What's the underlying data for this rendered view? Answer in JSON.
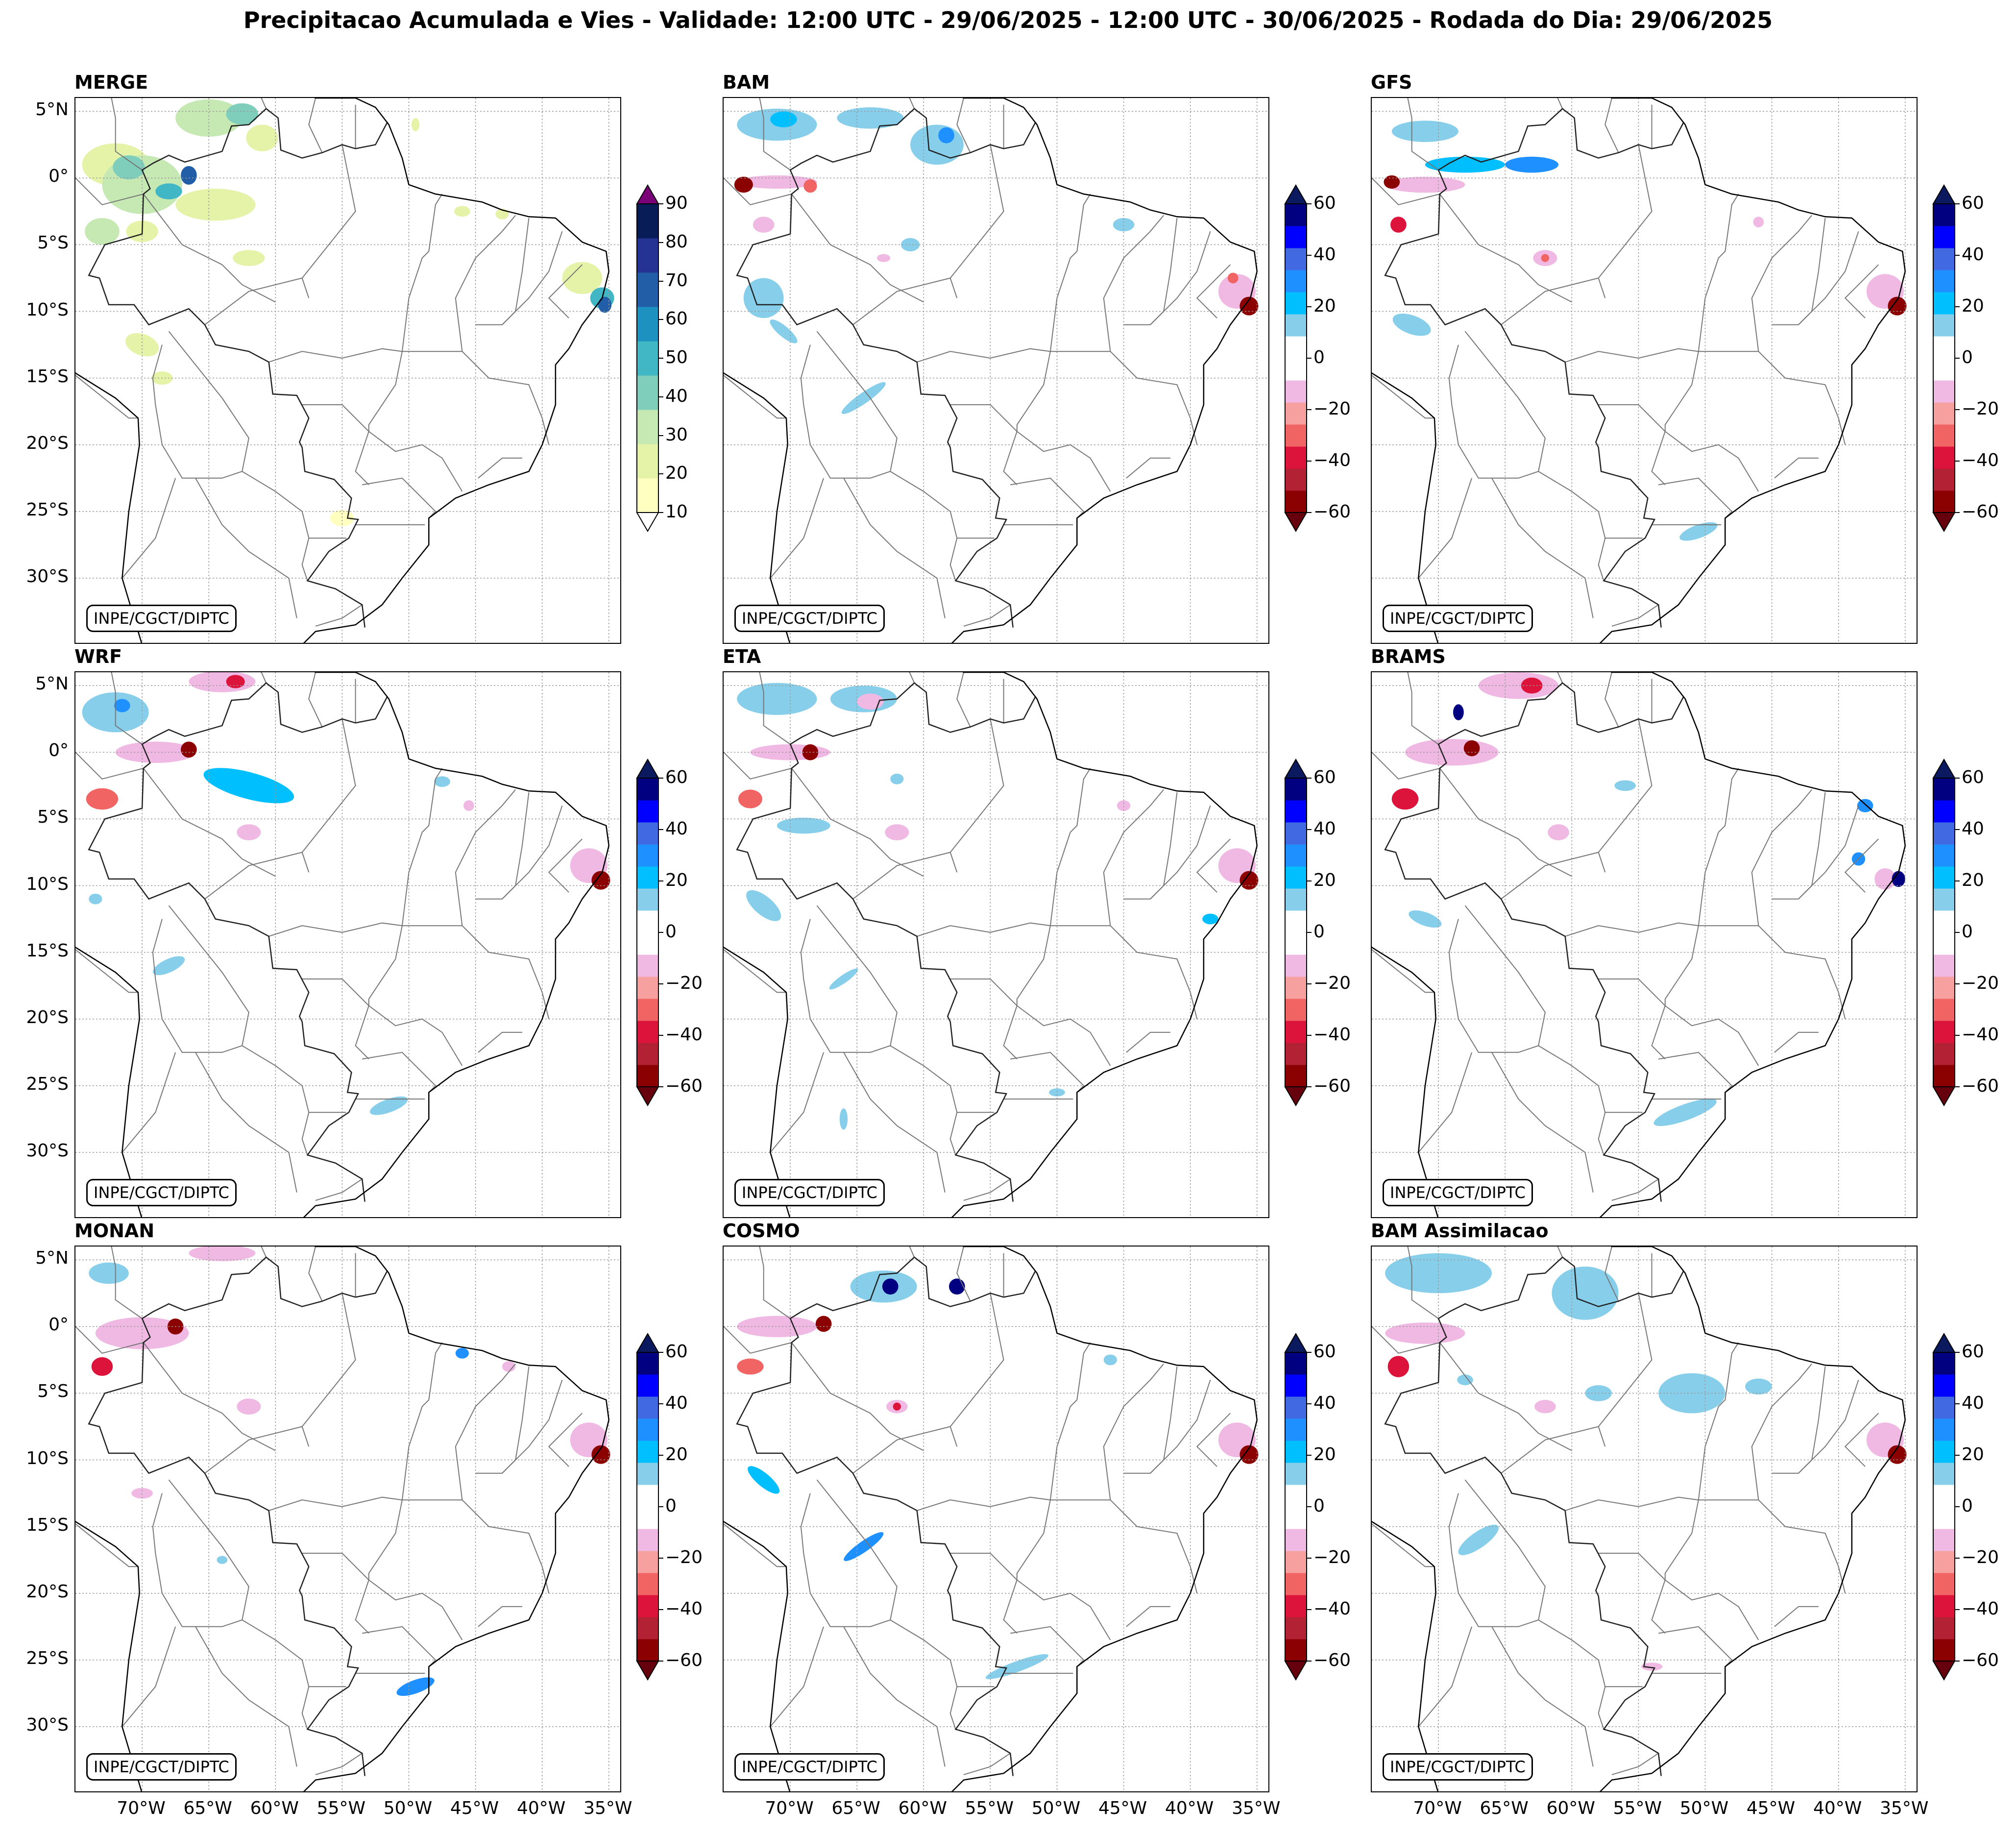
{
  "title": "Precipitacao Acumulada e Vies - Validade: 12:00 UTC - 29/06/2025 - 12:00 UTC - 30/06/2025 - Rodada do Dia: 29/06/2025",
  "credit": "INPE/CGCT/DIPTC",
  "lat_ticks": [
    "5°N",
    "0°",
    "5°S",
    "10°S",
    "15°S",
    "20°S",
    "25°S",
    "30°S"
  ],
  "lon_ticks": [
    "70°W",
    "65°W",
    "60°W",
    "55°W",
    "50°W",
    "45°W",
    "40°W",
    "35°W"
  ],
  "merge_colorbar": {
    "ticks": [
      "90",
      "80",
      "70",
      "60",
      "50",
      "40",
      "30",
      "20",
      "10"
    ],
    "colors": [
      "#ffffc0",
      "#e4f3a8",
      "#c6e9b4",
      "#7fcdbb",
      "#41b6c4",
      "#1d91c0",
      "#225ea8",
      "#253494",
      "#081d58"
    ],
    "under_color": "#ffffff",
    "over_color": "#7a0177"
  },
  "bias_colorbar": {
    "ticks": [
      "60",
      "40",
      "20",
      "0",
      "−20",
      "−40",
      "−60"
    ],
    "colors": [
      "#000080",
      "#0000ff",
      "#4169e1",
      "#1e90ff",
      "#00bfff",
      "#87ceeb",
      "#ffffff",
      "#ffffff",
      "#f0b9e3",
      "#f7a0a0",
      "#f06464",
      "#dc143c",
      "#b22234",
      "#8b0000"
    ],
    "under_color": "#67000d",
    "over_color": "#0b1a5e"
  },
  "panels": [
    {
      "name": "MERGE",
      "kind": "merge"
    },
    {
      "name": "BAM",
      "kind": "bias"
    },
    {
      "name": "GFS",
      "kind": "bias"
    },
    {
      "name": "WRF",
      "kind": "bias"
    },
    {
      "name": "ETA",
      "kind": "bias"
    },
    {
      "name": "BRAMS",
      "kind": "bias"
    },
    {
      "name": "MONAN",
      "kind": "bias"
    },
    {
      "name": "COSMO",
      "kind": "bias"
    },
    {
      "name": "BAM Assimilacao",
      "kind": "bias"
    }
  ]
}
